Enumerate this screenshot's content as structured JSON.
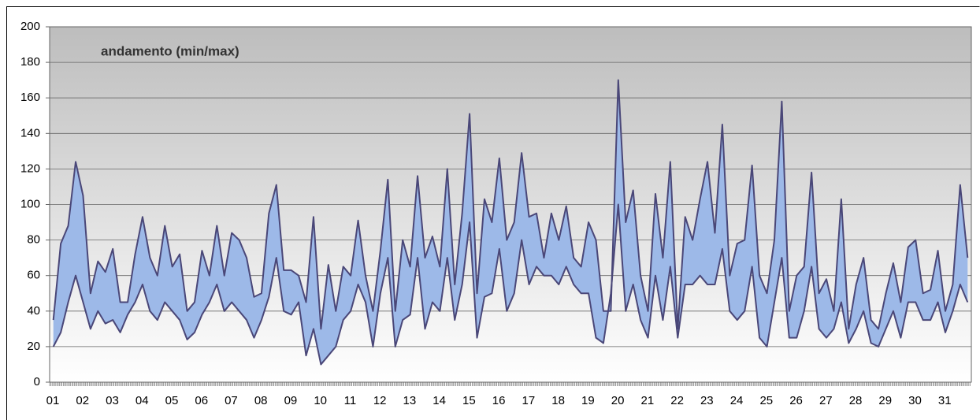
{
  "chart_data": {
    "type": "range-area",
    "title": "andamento (min/max)",
    "categories": [
      "01",
      null,
      null,
      null,
      "02",
      null,
      null,
      null,
      "03",
      null,
      null,
      null,
      "04",
      null,
      null,
      null,
      "05",
      null,
      null,
      null,
      "06",
      null,
      null,
      null,
      "07",
      null,
      null,
      null,
      "08",
      null,
      null,
      null,
      "09",
      null,
      null,
      null,
      "10",
      null,
      null,
      null,
      "11",
      null,
      null,
      null,
      "12",
      null,
      null,
      null,
      "13",
      null,
      null,
      null,
      "14",
      null,
      null,
      null,
      "15",
      null,
      null,
      null,
      "16",
      null,
      null,
      null,
      "17",
      null,
      null,
      null,
      "18",
      null,
      null,
      null,
      "19",
      null,
      null,
      null,
      "20",
      null,
      null,
      null,
      "21",
      null,
      null,
      null,
      "22",
      null,
      null,
      null,
      "23",
      null,
      null,
      null,
      "24",
      null,
      null,
      null,
      "25",
      null,
      null,
      null,
      "26",
      null,
      null,
      null,
      "27",
      null,
      null,
      null,
      "28",
      null,
      null,
      null,
      "29",
      null,
      null,
      null,
      "30",
      null,
      null,
      null,
      "31",
      null,
      null,
      null
    ],
    "series": [
      {
        "color": "#4a4778",
        "values": [
          35,
          78,
          88,
          124,
          105,
          50,
          68,
          62,
          75,
          45,
          45,
          72,
          93,
          70,
          60,
          88,
          65,
          72,
          40,
          45,
          74,
          60,
          88,
          60,
          84,
          80,
          70,
          48,
          50,
          95,
          111,
          63,
          63,
          60,
          45,
          93,
          30,
          66,
          40,
          65,
          60,
          91,
          60,
          40,
          74,
          114,
          40,
          80,
          65,
          116,
          70,
          82,
          65,
          120,
          55,
          95,
          151,
          50,
          103,
          90,
          126,
          80,
          90,
          129,
          93,
          95,
          70,
          95,
          80,
          99,
          70,
          65,
          90,
          80,
          40,
          40,
          170,
          90,
          108,
          60,
          40,
          106,
          70,
          124,
          30,
          93,
          80,
          103,
          124,
          84,
          145,
          60,
          78,
          80,
          122,
          60,
          50,
          80,
          158,
          40,
          60,
          65,
          118,
          50,
          58,
          40,
          103,
          30,
          55,
          70,
          35,
          30,
          50,
          67,
          45,
          76,
          80,
          50,
          52,
          74,
          40,
          55,
          111,
          70
        ]
      },
      {
        "color": "#4a4778",
        "values": [
          20,
          28,
          45,
          60,
          45,
          30,
          40,
          33,
          35,
          28,
          38,
          45,
          55,
          40,
          35,
          45,
          40,
          35,
          24,
          28,
          38,
          45,
          55,
          40,
          45,
          40,
          35,
          25,
          35,
          48,
          70,
          40,
          38,
          45,
          15,
          30,
          10,
          15,
          20,
          35,
          40,
          55,
          45,
          20,
          50,
          70,
          20,
          35,
          38,
          70,
          30,
          45,
          40,
          70,
          35,
          55,
          90,
          25,
          48,
          50,
          75,
          40,
          50,
          80,
          55,
          65,
          60,
          60,
          55,
          65,
          55,
          50,
          50,
          25,
          22,
          50,
          100,
          40,
          55,
          35,
          25,
          60,
          35,
          65,
          25,
          55,
          55,
          60,
          55,
          55,
          75,
          40,
          35,
          40,
          65,
          25,
          20,
          45,
          70,
          25,
          25,
          40,
          65,
          30,
          25,
          30,
          45,
          22,
          30,
          40,
          22,
          20,
          30,
          40,
          25,
          45,
          45,
          35,
          35,
          45,
          28,
          40,
          55,
          45
        ]
      }
    ],
    "fill": "#9db9e8",
    "ylim": [
      0,
      200
    ],
    "yticks": [
      0,
      20,
      40,
      60,
      80,
      100,
      120,
      140,
      160,
      180,
      200
    ],
    "grid": true
  }
}
